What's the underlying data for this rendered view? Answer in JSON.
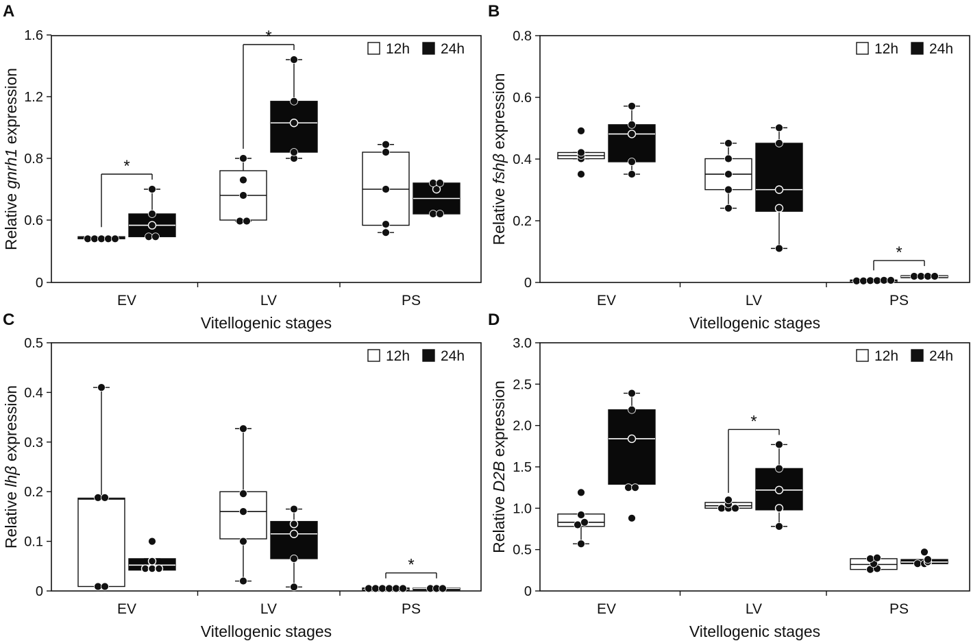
{
  "chart_data": [
    {
      "panel_label": "A",
      "type": "boxplot",
      "ylabel_prefix": "Relative ",
      "ylabel_gene": "gnrh1",
      "ylabel_suffix": " expression",
      "xlabel": "Vitellogenic stages",
      "categories": [
        "EV",
        "LV",
        "PS"
      ],
      "yticks": [
        "0",
        "0.6",
        "0.8",
        "1.2",
        "1.6"
      ],
      "legend": [
        "12h",
        "24h"
      ],
      "series": [
        {
          "name": "12h",
          "color": "#ffffff",
          "boxes": [
            {
              "q1": 0.42,
              "median": 0.43,
              "q3": 0.44,
              "whisker_low": 0.42,
              "whisker_high": 0.44,
              "points": [
                0.42,
                0.42,
                0.42,
                0.42,
                0.42
              ]
            },
            {
              "q1": 0.6,
              "median": 0.68,
              "q3": 0.76,
              "whisker_low": 0.59,
              "whisker_high": 0.8,
              "points": [
                0.59,
                0.59,
                0.68,
                0.73,
                0.8
              ]
            },
            {
              "q1": 0.55,
              "median": 0.7,
              "q3": 0.84,
              "whisker_low": 0.48,
              "whisker_high": 0.89,
              "points": [
                0.48,
                0.56,
                0.7,
                0.84,
                0.89
              ]
            }
          ]
        },
        {
          "name": "24h",
          "color": "#000000",
          "boxes": [
            {
              "q1": 0.44,
              "median": 0.55,
              "q3": 0.62,
              "whisker_low": 0.44,
              "whisker_high": 0.7,
              "points": [
                0.44,
                0.44,
                0.55,
                0.62,
                0.7
              ]
            },
            {
              "q1": 0.84,
              "median": 1.03,
              "q3": 1.17,
              "whisker_low": 0.8,
              "whisker_high": 1.44,
              "points": [
                0.8,
                0.84,
                1.03,
                1.17,
                1.44
              ]
            },
            {
              "q1": 0.62,
              "median": 0.67,
              "q3": 0.72,
              "whisker_low": 0.62,
              "whisker_high": 0.72,
              "points": [
                0.62,
                0.62,
                0.7,
                0.72,
                0.72
              ]
            }
          ]
        }
      ],
      "significance": [
        {
          "category": "EV",
          "label": "*"
        },
        {
          "category": "LV",
          "label": "*"
        }
      ]
    },
    {
      "panel_label": "B",
      "type": "boxplot",
      "ylabel_prefix": "Relative ",
      "ylabel_gene": "fshβ",
      "ylabel_suffix": " expression",
      "xlabel": "Vitellogenic stages",
      "categories": [
        "EV",
        "LV",
        "PS"
      ],
      "yticks": [
        "0",
        "0.2",
        "0.4",
        "0.6",
        "0.8"
      ],
      "ylim": [
        0,
        0.8
      ],
      "legend": [
        "12h",
        "24h"
      ],
      "series": [
        {
          "name": "12h",
          "color": "#ffffff",
          "boxes": [
            {
              "q1": 0.4,
              "median": 0.41,
              "q3": 0.42,
              "whisker_low": 0.4,
              "whisker_high": 0.42,
              "points": [
                0.35,
                0.4,
                0.41,
                0.42,
                0.49
              ]
            },
            {
              "q1": 0.3,
              "median": 0.35,
              "q3": 0.4,
              "whisker_low": 0.24,
              "whisker_high": 0.45,
              "points": [
                0.24,
                0.3,
                0.35,
                0.4,
                0.45
              ]
            },
            {
              "q1": 0.005,
              "median": 0.006,
              "q3": 0.008,
              "whisker_low": 0.005,
              "whisker_high": 0.008,
              "points": [
                0.005,
                0.005,
                0.006,
                0.006,
                0.007,
                0.007
              ]
            }
          ]
        },
        {
          "name": "24h",
          "color": "#000000",
          "boxes": [
            {
              "q1": 0.39,
              "median": 0.48,
              "q3": 0.51,
              "whisker_low": 0.35,
              "whisker_high": 0.57,
              "points": [
                0.35,
                0.39,
                0.48,
                0.51,
                0.57
              ]
            },
            {
              "q1": 0.23,
              "median": 0.3,
              "q3": 0.45,
              "whisker_low": 0.11,
              "whisker_high": 0.5,
              "points": [
                0.11,
                0.24,
                0.3,
                0.45,
                0.5
              ]
            },
            {
              "q1": 0.016,
              "median": 0.019,
              "q3": 0.022,
              "whisker_low": 0.016,
              "whisker_high": 0.022,
              "points": [
                0.02,
                0.02,
                0.02,
                0.02
              ]
            }
          ]
        }
      ],
      "significance": [
        {
          "category": "PS",
          "label": "*"
        }
      ]
    },
    {
      "panel_label": "C",
      "type": "boxplot",
      "ylabel_prefix": "Relative ",
      "ylabel_gene": "lhβ",
      "ylabel_suffix": " expression",
      "xlabel": "Vitellogenic stages",
      "categories": [
        "EV",
        "LV",
        "PS"
      ],
      "yticks": [
        "0",
        "0.1",
        "0.2",
        "0.3",
        "0.4",
        "0.5"
      ],
      "ylim": [
        0,
        0.5
      ],
      "legend": [
        "12h",
        "24h"
      ],
      "series": [
        {
          "name": "12h",
          "color": "#ffffff",
          "boxes": [
            {
              "q1": 0.009,
              "median": 0.185,
              "q3": 0.187,
              "whisker_low": 0.009,
              "whisker_high": 0.41,
              "points": [
                0.009,
                0.009,
                0.188,
                0.188,
                0.41
              ]
            },
            {
              "q1": 0.105,
              "median": 0.16,
              "q3": 0.2,
              "whisker_low": 0.02,
              "whisker_high": 0.327,
              "points": [
                0.02,
                0.1,
                0.16,
                0.196,
                0.327
              ]
            },
            {
              "q1": 0.004,
              "median": 0.005,
              "q3": 0.006,
              "whisker_low": 0.004,
              "whisker_high": 0.006,
              "points": [
                0.005,
                0.005,
                0.005,
                0.005,
                0.005,
                0.005
              ]
            }
          ]
        },
        {
          "name": "24h",
          "color": "#000000",
          "boxes": [
            {
              "q1": 0.042,
              "median": 0.052,
              "q3": 0.065,
              "whisker_low": 0.042,
              "whisker_high": 0.065,
              "points": [
                0.045,
                0.045,
                0.045,
                0.06,
                0.1
              ]
            },
            {
              "q1": 0.065,
              "median": 0.115,
              "q3": 0.14,
              "whisker_low": 0.008,
              "whisker_high": 0.165,
              "points": [
                0.008,
                0.065,
                0.115,
                0.135,
                0.165
              ]
            },
            {
              "q1": 0.004,
              "median": 0.005,
              "q3": 0.006,
              "whisker_low": 0.004,
              "whisker_high": 0.006,
              "points": [
                0.005,
                0.005,
                0.005
              ]
            }
          ]
        }
      ],
      "significance": [
        {
          "category": "PS",
          "label": "*"
        }
      ]
    },
    {
      "panel_label": "D",
      "type": "boxplot",
      "ylabel_prefix": "Relative ",
      "ylabel_gene": "D2B",
      "ylabel_suffix": " expression",
      "xlabel": "Vitellogenic stages",
      "categories": [
        "EV",
        "LV",
        "PS"
      ],
      "yticks": [
        "0",
        "0.5",
        "1.0",
        "1.5",
        "2.0",
        "2.5",
        "3.0"
      ],
      "ylim": [
        0,
        3.0
      ],
      "legend": [
        "12h",
        "24h"
      ],
      "series": [
        {
          "name": "12h",
          "color": "#ffffff",
          "boxes": [
            {
              "q1": 0.78,
              "median": 0.83,
              "q3": 0.93,
              "whisker_low": 0.57,
              "whisker_high": 0.93,
              "points": [
                0.57,
                0.8,
                0.83,
                0.92,
                1.19
              ]
            },
            {
              "q1": 1.0,
              "median": 1.03,
              "q3": 1.07,
              "whisker_low": 1.0,
              "whisker_high": 1.07,
              "points": [
                1.0,
                1.0,
                1.0,
                1.05,
                1.1
              ]
            },
            {
              "q1": 0.26,
              "median": 0.32,
              "q3": 0.39,
              "whisker_low": 0.26,
              "whisker_high": 0.39,
              "points": [
                0.26,
                0.27,
                0.33,
                0.39,
                0.4
              ]
            }
          ]
        },
        {
          "name": "24h",
          "color": "#000000",
          "boxes": [
            {
              "q1": 1.29,
              "median": 1.84,
              "q3": 2.19,
              "whisker_low": 1.29,
              "whisker_high": 2.39,
              "points": [
                0.88,
                1.25,
                1.25,
                1.84,
                2.19,
                2.39
              ]
            },
            {
              "q1": 0.98,
              "median": 1.22,
              "q3": 1.48,
              "whisker_low": 0.78,
              "whisker_high": 1.77,
              "points": [
                0.78,
                1.0,
                1.22,
                1.48,
                1.77
              ]
            },
            {
              "q1": 0.33,
              "median": 0.35,
              "q3": 0.38,
              "whisker_low": 0.33,
              "whisker_high": 0.38,
              "points": [
                0.33,
                0.33,
                0.35,
                0.38,
                0.47
              ]
            }
          ]
        }
      ],
      "significance": [
        {
          "category": "LV",
          "label": "*"
        }
      ]
    }
  ]
}
